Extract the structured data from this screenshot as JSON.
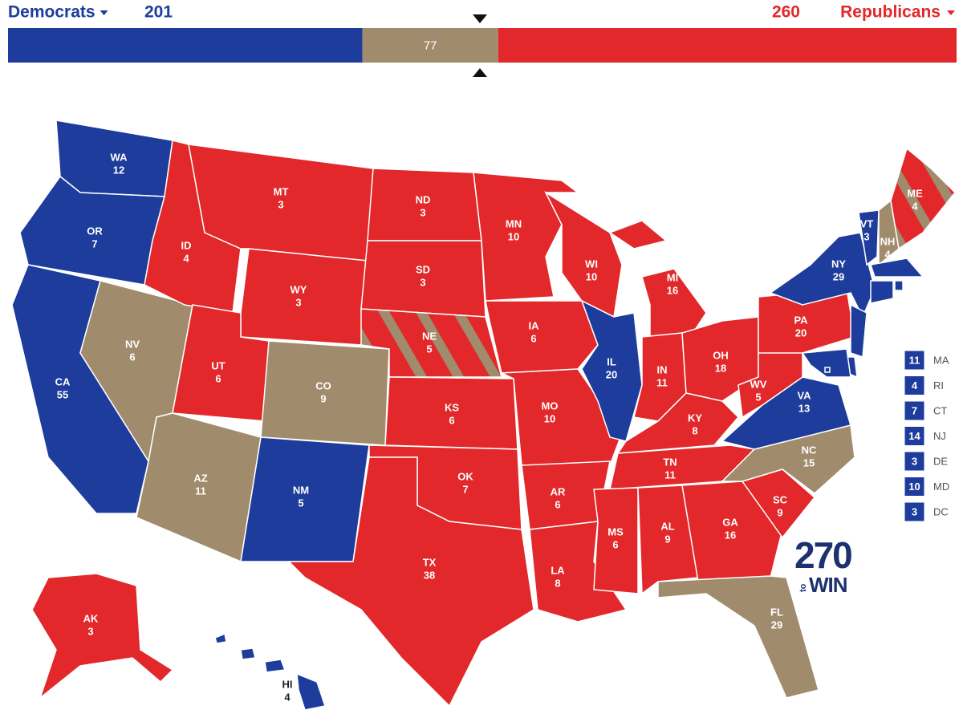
{
  "header": {
    "left_label": "Democrats",
    "left_total": 201,
    "tossup_total": 77,
    "right_total": 260,
    "right_label": "Republicans",
    "left_color": "#1d3c9c",
    "tossup_color": "#a08b6d",
    "right_color": "#e2282a"
  },
  "map": {
    "states": [
      {
        "abbr": "WA",
        "votes": 12,
        "color": "#1d3c9c"
      },
      {
        "abbr": "OR",
        "votes": 7,
        "color": "#1d3c9c"
      },
      {
        "abbr": "CA",
        "votes": 55,
        "color": "#1d3c9c"
      },
      {
        "abbr": "NV",
        "votes": 6,
        "color": "#a08b6d"
      },
      {
        "abbr": "ID",
        "votes": 4,
        "color": "#e2282a"
      },
      {
        "abbr": "MT",
        "votes": 3,
        "color": "#e2282a"
      },
      {
        "abbr": "WY",
        "votes": 3,
        "color": "#e2282a"
      },
      {
        "abbr": "UT",
        "votes": 6,
        "color": "#e2282a"
      },
      {
        "abbr": "CO",
        "votes": 9,
        "color": "#a08b6d"
      },
      {
        "abbr": "AZ",
        "votes": 11,
        "color": "#a08b6d"
      },
      {
        "abbr": "NM",
        "votes": 5,
        "color": "#1d3c9c"
      },
      {
        "abbr": "ND",
        "votes": 3,
        "color": "#e2282a"
      },
      {
        "abbr": "SD",
        "votes": 3,
        "color": "#e2282a"
      },
      {
        "abbr": "NE",
        "votes": 5,
        "color": "#e2282a",
        "stripe_color": "#a08b6d"
      },
      {
        "abbr": "KS",
        "votes": 6,
        "color": "#e2282a"
      },
      {
        "abbr": "OK",
        "votes": 7,
        "color": "#e2282a"
      },
      {
        "abbr": "TX",
        "votes": 38,
        "color": "#e2282a"
      },
      {
        "abbr": "MN",
        "votes": 10,
        "color": "#e2282a"
      },
      {
        "abbr": "IA",
        "votes": 6,
        "color": "#e2282a"
      },
      {
        "abbr": "MO",
        "votes": 10,
        "color": "#e2282a"
      },
      {
        "abbr": "AR",
        "votes": 6,
        "color": "#e2282a"
      },
      {
        "abbr": "LA",
        "votes": 8,
        "color": "#e2282a"
      },
      {
        "abbr": "WI",
        "votes": 10,
        "color": "#e2282a"
      },
      {
        "abbr": "IL",
        "votes": 20,
        "color": "#1d3c9c"
      },
      {
        "abbr": "MI",
        "votes": 16,
        "color": "#e2282a"
      },
      {
        "abbr": "IN",
        "votes": 11,
        "color": "#e2282a"
      },
      {
        "abbr": "OH",
        "votes": 18,
        "color": "#e2282a"
      },
      {
        "abbr": "KY",
        "votes": 8,
        "color": "#e2282a"
      },
      {
        "abbr": "TN",
        "votes": 11,
        "color": "#e2282a"
      },
      {
        "abbr": "MS",
        "votes": 6,
        "color": "#e2282a"
      },
      {
        "abbr": "AL",
        "votes": 9,
        "color": "#e2282a"
      },
      {
        "abbr": "GA",
        "votes": 16,
        "color": "#e2282a"
      },
      {
        "abbr": "FL",
        "votes": 29,
        "color": "#a08b6d"
      },
      {
        "abbr": "SC",
        "votes": 9,
        "color": "#e2282a"
      },
      {
        "abbr": "NC",
        "votes": 15,
        "color": "#a08b6d"
      },
      {
        "abbr": "VA",
        "votes": 13,
        "color": "#1d3c9c"
      },
      {
        "abbr": "WV",
        "votes": 5,
        "color": "#e2282a"
      },
      {
        "abbr": "PA",
        "votes": 20,
        "color": "#e2282a"
      },
      {
        "abbr": "NY",
        "votes": 29,
        "color": "#1d3c9c"
      },
      {
        "abbr": "VT",
        "votes": 3,
        "color": "#1d3c9c"
      },
      {
        "abbr": "NH",
        "votes": 4,
        "color": "#a08b6d"
      },
      {
        "abbr": "ME",
        "votes": 4,
        "color": "#e2282a",
        "stripe_color": "#a08b6d"
      },
      {
        "abbr": "AK",
        "votes": 3,
        "color": "#e2282a"
      },
      {
        "abbr": "HI",
        "votes": 4,
        "color": "#1d3c9c",
        "label_color": "#222222"
      }
    ],
    "small_states": [
      {
        "votes": 11,
        "abbr": "MA",
        "color": "#1d3c9c"
      },
      {
        "votes": 4,
        "abbr": "RI",
        "color": "#1d3c9c"
      },
      {
        "votes": 7,
        "abbr": "CT",
        "color": "#1d3c9c"
      },
      {
        "votes": 14,
        "abbr": "NJ",
        "color": "#1d3c9c"
      },
      {
        "votes": 3,
        "abbr": "DE",
        "color": "#1d3c9c"
      },
      {
        "votes": 10,
        "abbr": "MD",
        "color": "#1d3c9c"
      },
      {
        "votes": 3,
        "abbr": "DC",
        "color": "#1d3c9c"
      }
    ]
  },
  "logo": {
    "number": "270",
    "small": "to",
    "word": "WIN"
  }
}
